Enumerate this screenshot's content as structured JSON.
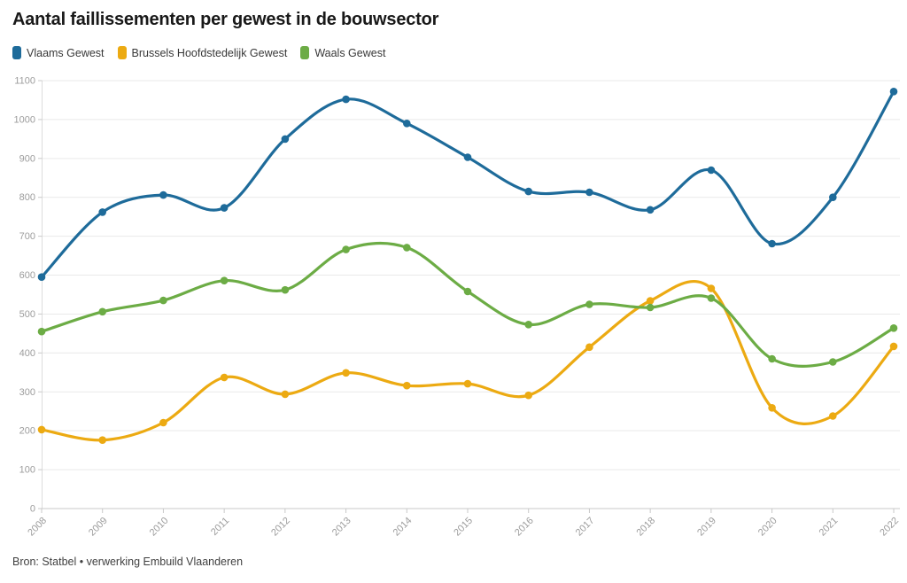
{
  "header": {
    "title": "Aantal faillissementen per gewest in de bouwsector"
  },
  "footer": {
    "source": "Bron: Statbel • verwerking Embuild Vlaanderen"
  },
  "style": {
    "background": "#ffffff",
    "grid_color": "#e9e9e9",
    "axis_color": "#c9c9c9",
    "axis_line_color": "#dcdcdc",
    "tick_label_color": "#9c9c9c",
    "title_color": "#191919",
    "legend_text_color": "#383838",
    "source_text_color": "#414141"
  },
  "chart_data": {
    "type": "line",
    "title": "Aantal faillissementen per gewest in de bouwsector",
    "xlabel": "",
    "ylabel": "",
    "x": [
      2008,
      2009,
      2010,
      2011,
      2012,
      2013,
      2014,
      2015,
      2016,
      2017,
      2018,
      2019,
      2020,
      2021,
      2022
    ],
    "ylim": [
      0,
      1100
    ],
    "yticks": [
      0,
      100,
      200,
      300,
      400,
      500,
      600,
      700,
      800,
      900,
      1000,
      1100
    ],
    "grid": "horizontal",
    "legend_position": "top-left",
    "smooth": true,
    "markers": true,
    "series": [
      {
        "id": "vlaams",
        "name": "Vlaams Gewest",
        "color": "#1e6b9a",
        "values": [
          595,
          762,
          806,
          773,
          950,
          1052,
          990,
          903,
          815,
          813,
          768,
          870,
          681,
          800,
          1072
        ]
      },
      {
        "id": "brussels",
        "name": "Brussels Hoofdstedelijk Gewest",
        "color": "#ecaa12",
        "values": [
          203,
          176,
          221,
          337,
          294,
          349,
          316,
          321,
          291,
          415,
          534,
          566,
          259,
          238,
          417
        ]
      },
      {
        "id": "waals",
        "name": "Waals Gewest",
        "color": "#6cac45",
        "values": [
          455,
          506,
          535,
          586,
          562,
          666,
          671,
          558,
          473,
          525,
          517,
          541,
          385,
          377,
          464
        ]
      }
    ]
  }
}
